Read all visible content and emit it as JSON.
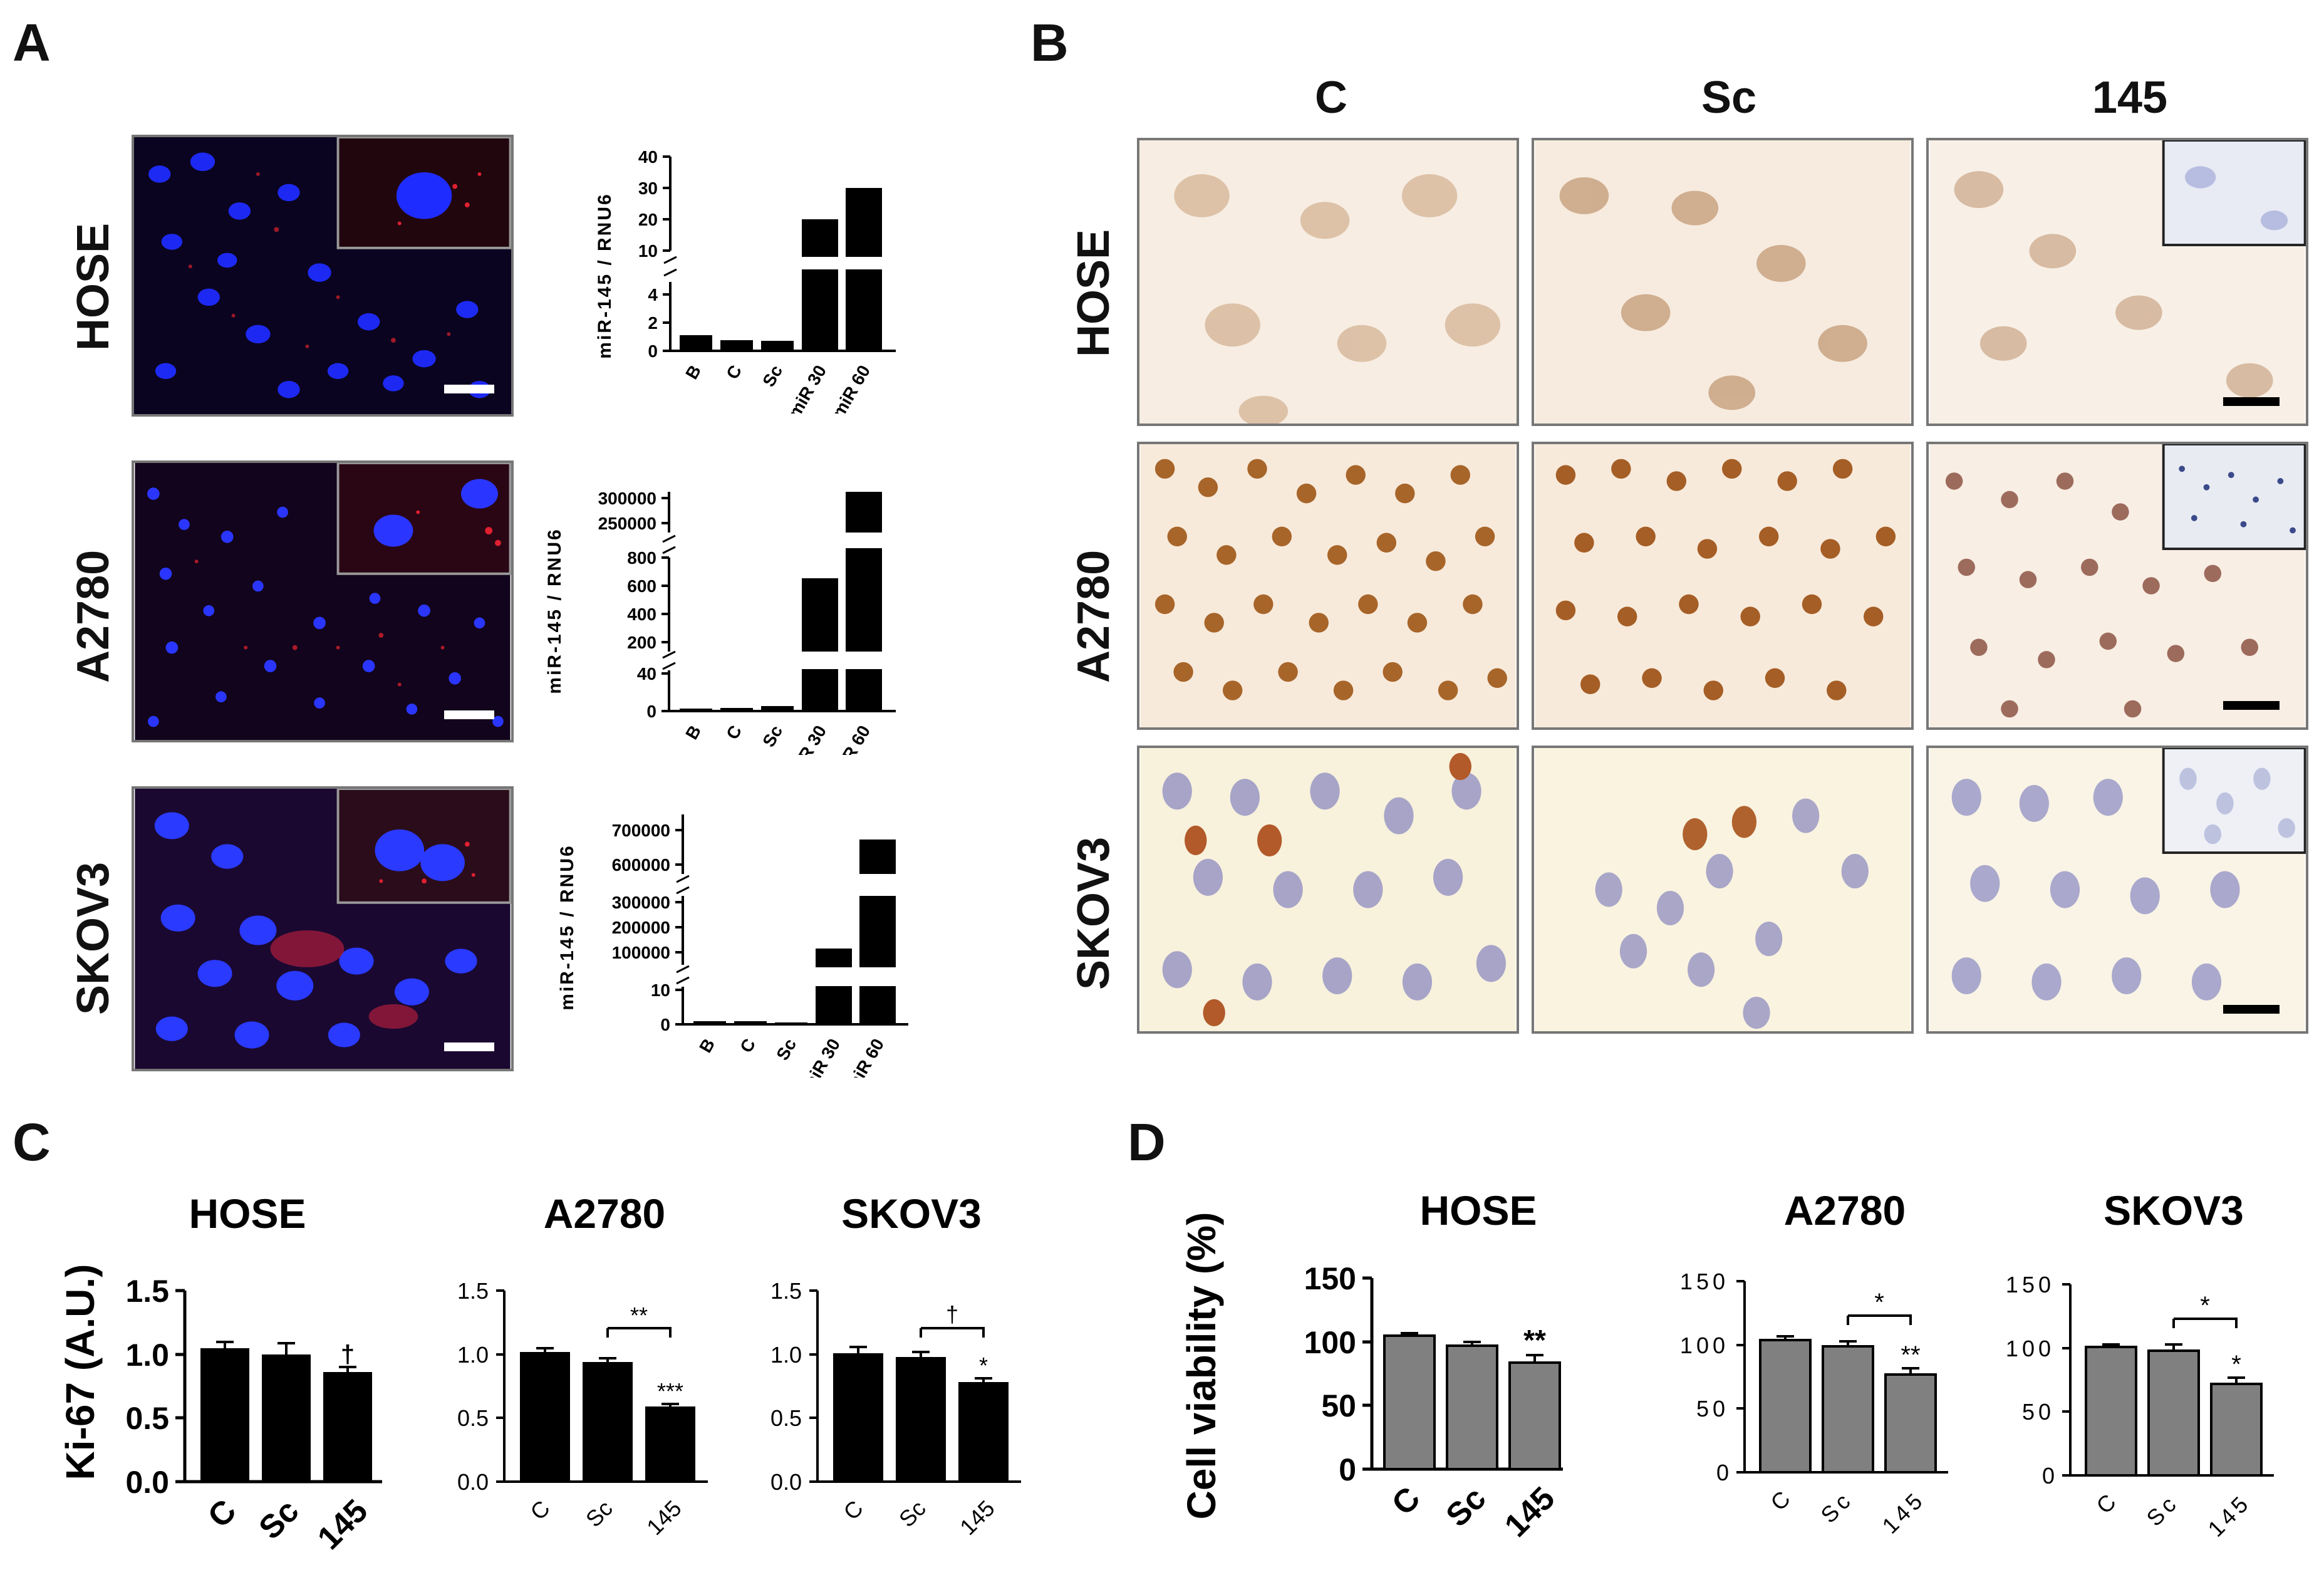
{
  "panels": {
    "A": "A",
    "B": "B",
    "C": "C",
    "D": "D"
  },
  "cell_lines": {
    "hose": "HOSE",
    "a2780": "A2780",
    "skov3": "SKOV3"
  },
  "panelB": {
    "cols": [
      "C",
      "Sc",
      "145"
    ]
  },
  "chart_data": [
    {
      "id": "A-HOSE",
      "type": "bar",
      "categories": [
        "B",
        "C",
        "Sc",
        "miR 30",
        "miR 60"
      ],
      "values": [
        1.1,
        0.75,
        0.7,
        20,
        30
      ],
      "ylabel": "miR-145 / RNU6",
      "yticks_low": [
        "0",
        "2",
        "4"
      ],
      "yticks_high": [
        "10",
        "20",
        "30",
        "40"
      ],
      "broken_axis": true
    },
    {
      "id": "A-A2780",
      "type": "bar",
      "categories": [
        "B",
        "C",
        "Sc",
        "miR 30",
        "miR 60"
      ],
      "values": [
        1,
        2,
        3,
        640,
        290000
      ],
      "ylabel": "miR-145 / RNU6",
      "yticks_low": [
        "0",
        "40"
      ],
      "yticks_mid": [
        "200",
        "400",
        "600",
        "800"
      ],
      "yticks_high": [
        "250000",
        "300000"
      ],
      "broken_axis": true
    },
    {
      "id": "A-SKOV3",
      "type": "bar",
      "categories": [
        "B",
        "C",
        "Sc",
        "miR 30",
        "miR 60"
      ],
      "values": [
        1,
        1,
        0.5,
        130000,
        620000
      ],
      "ylabel": "miR-145 / RNU6",
      "yticks_low": [
        "0",
        "10"
      ],
      "yticks_mid": [
        "100000",
        "200000",
        "300000"
      ],
      "yticks_high": [
        "600000",
        "700000"
      ],
      "broken_axis": true
    },
    {
      "id": "C-HOSE",
      "type": "bar",
      "title": "HOSE",
      "categories": [
        "C",
        "Sc",
        "145"
      ],
      "values": [
        1.05,
        1.0,
        0.86
      ],
      "errors": [
        0.05,
        0.09,
        0.04
      ],
      "ylabel": "Ki-67 (A.U.)",
      "ylim": [
        0,
        1.5
      ],
      "yticks": [
        "0.0",
        "0.5",
        "1.0",
        "1.5"
      ],
      "annotations": [
        "",
        "",
        "†"
      ],
      "bracket": null,
      "color": "#000000"
    },
    {
      "id": "C-A2780",
      "type": "bar",
      "title": "A2780",
      "categories": [
        "C",
        "Sc",
        "145"
      ],
      "values": [
        1.02,
        0.94,
        0.59
      ],
      "errors": [
        0.03,
        0.03,
        0.02
      ],
      "ylim": [
        0,
        1.5
      ],
      "yticks": [
        "0.0",
        "0.5",
        "1.0",
        "1.5"
      ],
      "annotations": [
        "",
        "",
        "***"
      ],
      "bracket": "**",
      "color": "#000000"
    },
    {
      "id": "C-SKOV3",
      "type": "bar",
      "title": "SKOV3",
      "categories": [
        "C",
        "Sc",
        "145"
      ],
      "values": [
        1.01,
        0.98,
        0.78
      ],
      "errors": [
        0.05,
        0.04,
        0.03
      ],
      "ylim": [
        0,
        1.5
      ],
      "yticks": [
        "0.0",
        "0.5",
        "1.0",
        "1.5"
      ],
      "annotations": [
        "",
        "",
        "*"
      ],
      "bracket": "†",
      "color": "#000000"
    },
    {
      "id": "D-HOSE",
      "type": "bar",
      "title": "HOSE",
      "categories": [
        "C",
        "Sc",
        "145"
      ],
      "values": [
        105,
        97,
        84
      ],
      "errors": [
        2,
        3,
        6
      ],
      "ylabel": "Cell viability (%)",
      "ylim": [
        0,
        150
      ],
      "yticks": [
        "0",
        "50",
        "100",
        "150"
      ],
      "annotations": [
        "",
        "",
        "**"
      ],
      "bracket": null,
      "color": "#808080"
    },
    {
      "id": "D-A2780",
      "type": "bar",
      "title": "A2780",
      "categories": [
        "C",
        "Sc",
        "145"
      ],
      "values": [
        104,
        99,
        77
      ],
      "errors": [
        3,
        4,
        5
      ],
      "ylim": [
        0,
        150
      ],
      "yticks": [
        "0",
        "50",
        "100",
        "150"
      ],
      "annotations": [
        "",
        "",
        "**"
      ],
      "bracket": "*",
      "color": "#808080"
    },
    {
      "id": "D-SKOV3",
      "type": "bar",
      "title": "SKOV3",
      "categories": [
        "C",
        "Sc",
        "145"
      ],
      "values": [
        101,
        98,
        72
      ],
      "errors": [
        2,
        5,
        5
      ],
      "ylim": [
        0,
        150
      ],
      "yticks": [
        "0",
        "50",
        "100",
        "150"
      ],
      "annotations": [
        "",
        "",
        "*"
      ],
      "bracket": "*",
      "color": "#808080"
    }
  ]
}
